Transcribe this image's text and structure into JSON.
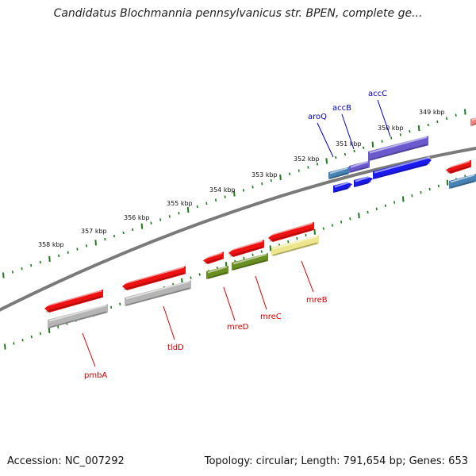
{
  "title": "Candidatus Blochmannia pennsylvanicus str. BPEN, complete ge...",
  "footer": {
    "accession": "Accession: NC_007292",
    "stats": "Topology: circular; Length: 791,654 bp; Genes: 653"
  },
  "colors": {
    "backbone": "#7a7a7a",
    "ticks": "#1f7a1f",
    "gene_red": "#ee1111",
    "gene_gray": "#b5b5b5",
    "gene_olive": "#6b8e23",
    "gene_yellow": "#eee68c",
    "gene_steelblue": "#4682b4",
    "gene_blue": "#1a1aee",
    "gene_slateblue": "#6a5acd",
    "gene_pink": "#f08080",
    "label_red": "#cc0000",
    "label_blue": "#0000bb"
  },
  "ticks": [
    "349 kbp",
    "350 kbp",
    "351 kbp",
    "352 kbp",
    "353 kbp",
    "354 kbp",
    "355 kbp",
    "356 kbp",
    "357 kbp",
    "358 kbp"
  ],
  "gene_labels": {
    "top": [
      "aroQ",
      "accB",
      "accC"
    ],
    "bottom": [
      "pmbA",
      "tldD",
      "mreD",
      "mreC",
      "mreB"
    ]
  }
}
